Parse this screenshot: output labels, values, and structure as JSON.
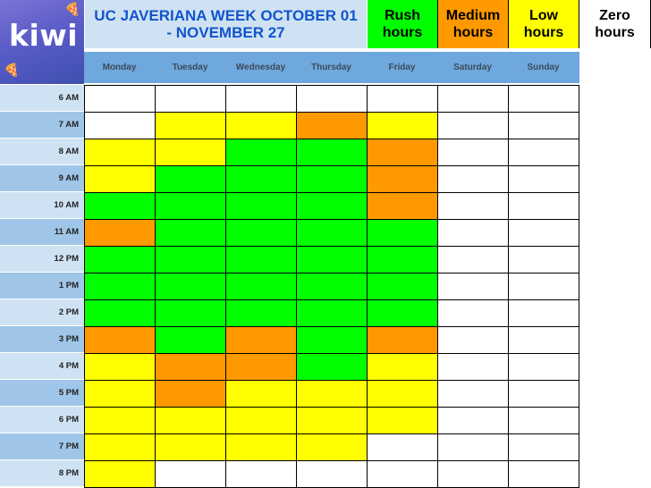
{
  "title": "UC JAVERIANA WEEK OCTOBER 01 - NOVEMBER 27",
  "logo": {
    "text": "kiwi",
    "decor_icon": "pizza-slice-icon"
  },
  "legend": [
    {
      "key": "rush",
      "label": "Rush hours",
      "color": "#00ff00"
    },
    {
      "key": "medium",
      "label": "Medium hours",
      "color": "#ff9900"
    },
    {
      "key": "low",
      "label": "Low hours",
      "color": "#ffff00"
    },
    {
      "key": "zero",
      "label": "Zero hours",
      "color": "#ffffff"
    }
  ],
  "days": [
    "Monday",
    "Tuesday",
    "Wednesday",
    "Thursday",
    "Friday",
    "Saturday",
    "Sunday"
  ],
  "times": [
    "6 AM",
    "7 AM",
    "8 AM",
    "9 AM",
    "10 AM",
    "11 AM",
    "12 PM",
    "1 PM",
    "2 PM",
    "3 PM",
    "4 PM",
    "5 PM",
    "6 PM",
    "7 PM",
    "8 PM"
  ],
  "schedule": [
    [
      "zero",
      "zero",
      "zero",
      "zero",
      "zero",
      "zero",
      "zero"
    ],
    [
      "zero",
      "low",
      "low",
      "medium",
      "low",
      "zero",
      "zero"
    ],
    [
      "low",
      "low",
      "rush",
      "rush",
      "medium",
      "zero",
      "zero"
    ],
    [
      "low",
      "rush",
      "rush",
      "rush",
      "medium",
      "zero",
      "zero"
    ],
    [
      "rush",
      "rush",
      "rush",
      "rush",
      "medium",
      "zero",
      "zero"
    ],
    [
      "medium",
      "rush",
      "rush",
      "rush",
      "rush",
      "zero",
      "zero"
    ],
    [
      "rush",
      "rush",
      "rush",
      "rush",
      "rush",
      "zero",
      "zero"
    ],
    [
      "rush",
      "rush",
      "rush",
      "rush",
      "rush",
      "zero",
      "zero"
    ],
    [
      "rush",
      "rush",
      "rush",
      "rush",
      "rush",
      "zero",
      "zero"
    ],
    [
      "medium",
      "rush",
      "medium",
      "rush",
      "medium",
      "zero",
      "zero"
    ],
    [
      "low",
      "medium",
      "medium",
      "rush",
      "low",
      "zero",
      "zero"
    ],
    [
      "low",
      "medium",
      "low",
      "low",
      "low",
      "zero",
      "zero"
    ],
    [
      "low",
      "low",
      "low",
      "low",
      "low",
      "zero",
      "zero"
    ],
    [
      "low",
      "low",
      "low",
      "low",
      "zero",
      "zero",
      "zero"
    ],
    [
      "low",
      "zero",
      "zero",
      "zero",
      "zero",
      "zero",
      "zero"
    ]
  ],
  "colors": {
    "rush": "#00ff00",
    "medium": "#ff9900",
    "low": "#ffff00",
    "zero": "#ffffff",
    "title_bg": "#cfe2f3",
    "title_text": "#1155cc",
    "day_header_bg": "#6fa8dc",
    "time_col_light": "#cfe2f3",
    "time_col_dark": "#9fc5e8"
  }
}
